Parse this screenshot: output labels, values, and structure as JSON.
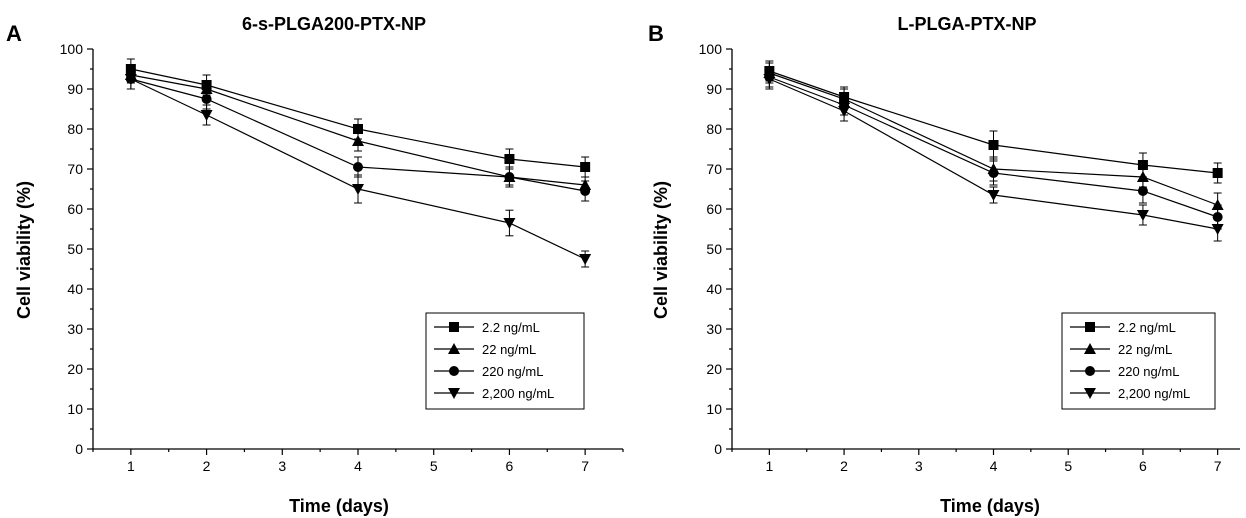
{
  "chart_data": [
    {
      "panel": "A",
      "type": "line",
      "title": "6-s-PLGA200-PTX-NP",
      "xlabel": "Time (days)",
      "ylabel": "Cell viability (%)",
      "xlim": [
        0.5,
        7.5
      ],
      "ylim": [
        0,
        100
      ],
      "xticks": [
        1,
        2,
        3,
        4,
        5,
        6,
        7
      ],
      "yticks": [
        0,
        10,
        20,
        30,
        40,
        50,
        60,
        70,
        80,
        90,
        100
      ],
      "x": [
        1,
        2,
        4,
        6,
        7
      ],
      "legend_position": "bottom-right",
      "series": [
        {
          "name": "2.2 ng/mL",
          "marker": "square",
          "values": [
            95,
            91,
            80,
            72.5,
            70.5
          ],
          "errors": [
            2.5,
            2.5,
            2.5,
            2.5,
            2.5
          ]
        },
        {
          "name": "22 ng/mL",
          "marker": "triangle-up",
          "values": [
            93.5,
            90,
            77,
            68,
            66
          ],
          "errors": [
            2,
            2,
            2.5,
            2,
            2
          ]
        },
        {
          "name": "220 ng/mL",
          "marker": "circle",
          "values": [
            92.5,
            87.5,
            70.5,
            68,
            64.5
          ],
          "errors": [
            2.5,
            2.5,
            2.5,
            2.5,
            2.5
          ]
        },
        {
          "name": "2,200 ng/mL",
          "marker": "triangle-down",
          "values": [
            92.5,
            83.5,
            65,
            56.5,
            47.5
          ],
          "errors": [
            2.5,
            2.5,
            3.5,
            3.2,
            2
          ]
        }
      ]
    },
    {
      "panel": "B",
      "type": "line",
      "title": "L-PLGA-PTX-NP",
      "xlabel": "Time (days)",
      "ylabel": "Cell viability (%)",
      "xlim": [
        0.5,
        7.5
      ],
      "ylim": [
        0,
        100
      ],
      "xticks": [
        1,
        2,
        3,
        4,
        5,
        6,
        7
      ],
      "yticks": [
        0,
        10,
        20,
        30,
        40,
        50,
        60,
        70,
        80,
        90,
        100
      ],
      "x": [
        1,
        2,
        4,
        6,
        7
      ],
      "legend_position": "bottom-right",
      "series": [
        {
          "name": "2.2 ng/mL",
          "marker": "square",
          "values": [
            94.5,
            88,
            76,
            71,
            69
          ],
          "errors": [
            2.5,
            2.5,
            3.5,
            3,
            2.5
          ]
        },
        {
          "name": "22 ng/mL",
          "marker": "triangle-up",
          "values": [
            94,
            87.5,
            70,
            68,
            61
          ],
          "errors": [
            2.5,
            2.5,
            3,
            2.5,
            3
          ]
        },
        {
          "name": "220 ng/mL",
          "marker": "circle",
          "values": [
            93,
            86,
            69,
            64.5,
            58
          ],
          "errors": [
            2.5,
            2.5,
            3,
            3,
            3
          ]
        },
        {
          "name": "2,200 ng/mL",
          "marker": "triangle-down",
          "values": [
            92.5,
            84.5,
            63.5,
            58.5,
            55
          ],
          "errors": [
            2.5,
            2.5,
            2,
            2.5,
            3
          ]
        }
      ]
    }
  ]
}
